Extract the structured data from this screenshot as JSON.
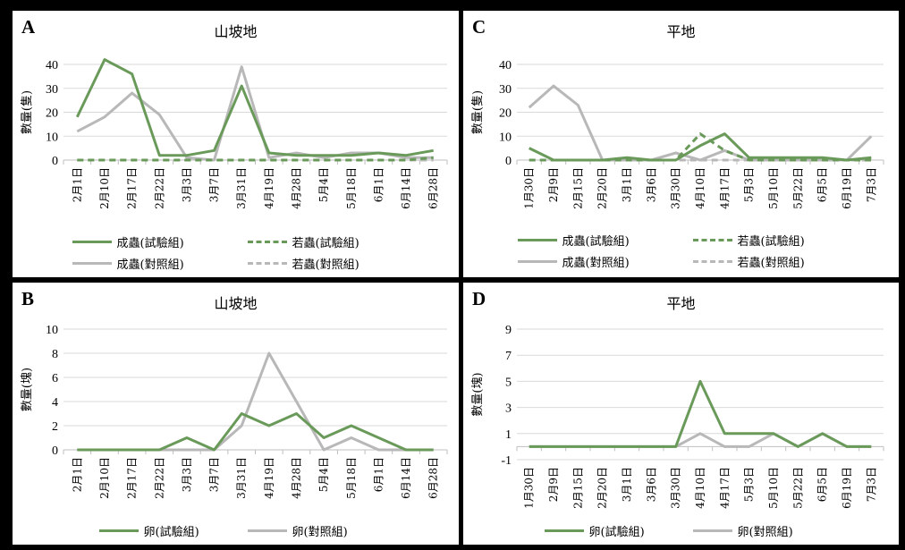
{
  "colors": {
    "experimental": "#6a9a5a",
    "control": "#b8b8b8"
  },
  "legend": {
    "adult_exp": "成蟲(試驗組)",
    "nymph_exp": "若蟲(試驗組)",
    "adult_ctl": "成蟲(對照組)",
    "nymph_ctl": "若蟲(對照組)",
    "egg_exp": "卵(試驗組)",
    "egg_ctl": "卵(對照組)"
  },
  "panels": {
    "A": {
      "letter": "A",
      "title": "山坡地"
    },
    "B": {
      "letter": "B",
      "title": "山坡地"
    },
    "C": {
      "letter": "C",
      "title": "平地"
    },
    "D": {
      "letter": "D",
      "title": "平地"
    }
  },
  "chart_data": [
    {
      "id": "A",
      "type": "line",
      "title": "山坡地",
      "ylabel": "數量(隻)",
      "ylim": [
        0,
        40
      ],
      "yticks": [
        0,
        10,
        20,
        30,
        40
      ],
      "categories": [
        "2月1日",
        "2月10日",
        "2月17日",
        "2月22日",
        "3月3日",
        "3月7日",
        "3月31日",
        "4月19日",
        "4月28日",
        "5月4日",
        "5月18日",
        "6月1日",
        "6月14日",
        "6月28日"
      ],
      "series": [
        {
          "name": "成蟲(試驗組)",
          "color": "#6a9a5a",
          "dash": false,
          "values": [
            18,
            42,
            36,
            2,
            2,
            4,
            31,
            3,
            2,
            2,
            2,
            3,
            2,
            4
          ]
        },
        {
          "name": "若蟲(試驗組)",
          "color": "#6a9a5a",
          "dash": true,
          "values": [
            0,
            0,
            0,
            0,
            0,
            0,
            0,
            0,
            0,
            0,
            0,
            0,
            0,
            1
          ]
        },
        {
          "name": "成蟲(對照組)",
          "color": "#b8b8b8",
          "dash": false,
          "values": [
            12,
            18,
            28,
            19,
            1,
            0,
            39,
            1,
            3,
            1,
            3,
            3,
            1,
            1
          ]
        },
        {
          "name": "若蟲(對照組)",
          "color": "#b8b8b8",
          "dash": true,
          "values": [
            0,
            0,
            0,
            0,
            0,
            0,
            0,
            0,
            0,
            0,
            0,
            0,
            0,
            0
          ]
        }
      ]
    },
    {
      "id": "B",
      "type": "line",
      "title": "山坡地",
      "ylabel": "數量(塊)",
      "ylim": [
        0,
        10
      ],
      "yticks": [
        0,
        2,
        4,
        6,
        8,
        10
      ],
      "categories": [
        "2月1日",
        "2月10日",
        "2月17日",
        "2月22日",
        "3月3日",
        "3月7日",
        "3月31日",
        "4月19日",
        "4月28日",
        "5月4日",
        "5月18日",
        "6月1日",
        "6月14日",
        "6月28日"
      ],
      "series": [
        {
          "name": "卵(試驗組)",
          "color": "#6a9a5a",
          "dash": false,
          "values": [
            0,
            0,
            0,
            0,
            1,
            0,
            3,
            2,
            3,
            1,
            2,
            1,
            0,
            0
          ]
        },
        {
          "name": "卵(對照組)",
          "color": "#b8b8b8",
          "dash": false,
          "values": [
            0,
            0,
            0,
            0,
            0,
            0,
            2,
            8,
            4,
            0,
            1,
            0,
            0,
            0
          ]
        }
      ]
    },
    {
      "id": "C",
      "type": "line",
      "title": "平地",
      "ylabel": "數量(隻)",
      "ylim": [
        0,
        40
      ],
      "yticks": [
        0,
        10,
        20,
        30,
        40
      ],
      "categories": [
        "1月30日",
        "2月9日",
        "2月15日",
        "2月20日",
        "3月1日",
        "3月6日",
        "3月30日",
        "4月10日",
        "4月17日",
        "5月3日",
        "5月10日",
        "5月22日",
        "6月5日",
        "6月19日",
        "7月3日"
      ],
      "series": [
        {
          "name": "成蟲(試驗組)",
          "color": "#6a9a5a",
          "dash": false,
          "values": [
            5,
            0,
            0,
            0,
            1,
            0,
            0,
            6,
            11,
            1,
            1,
            1,
            1,
            0,
            1
          ]
        },
        {
          "name": "若蟲(試驗組)",
          "color": "#6a9a5a",
          "dash": true,
          "values": [
            0,
            0,
            0,
            0,
            0,
            0,
            0,
            11,
            4,
            0,
            0,
            0,
            0,
            0,
            0
          ]
        },
        {
          "name": "成蟲(對照組)",
          "color": "#b8b8b8",
          "dash": false,
          "values": [
            22,
            31,
            23,
            0,
            0,
            0,
            3,
            0,
            4,
            0,
            0,
            0,
            0,
            0,
            10
          ]
        },
        {
          "name": "若蟲(對照組)",
          "color": "#b8b8b8",
          "dash": true,
          "values": [
            0,
            0,
            0,
            0,
            0,
            0,
            0,
            0,
            0,
            0,
            0,
            0,
            0,
            0,
            0
          ]
        }
      ]
    },
    {
      "id": "D",
      "type": "line",
      "title": "平地",
      "ylabel": "數量(塊)",
      "ylim": [
        -1,
        9
      ],
      "yticks": [
        -1,
        1,
        3,
        5,
        7,
        9
      ],
      "categories": [
        "1月30日",
        "2月9日",
        "2月15日",
        "2月20日",
        "3月1日",
        "3月6日",
        "3月30日",
        "4月10日",
        "4月17日",
        "5月3日",
        "5月10日",
        "5月22日",
        "6月5日",
        "6月19日",
        "7月3日"
      ],
      "series": [
        {
          "name": "卵(試驗組)",
          "color": "#6a9a5a",
          "dash": false,
          "values": [
            0,
            0,
            0,
            0,
            0,
            0,
            0,
            5,
            1,
            1,
            1,
            0,
            1,
            0,
            0
          ]
        },
        {
          "name": "卵(對照組)",
          "color": "#b8b8b8",
          "dash": false,
          "values": [
            0,
            0,
            0,
            0,
            0,
            0,
            0,
            1,
            0,
            0,
            1,
            0,
            1,
            0,
            0
          ]
        }
      ]
    }
  ]
}
